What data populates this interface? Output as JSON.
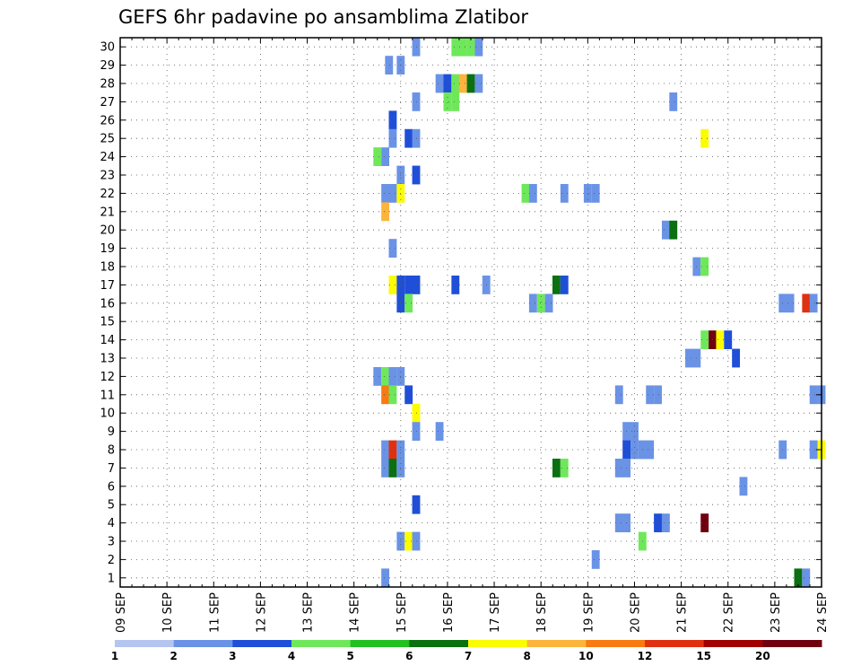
{
  "chart_data": {
    "type": "heatmap",
    "title": "GEFS 6hr padavine po ansamblima Zlatibor",
    "xlabel": "",
    "ylabel": "",
    "x_ticks": [
      "09 SEP",
      "10 SEP",
      "11 SEP",
      "12 SEP",
      "13 SEP",
      "14 SEP",
      "15 SEP",
      "16 SEP",
      "17 SEP",
      "18 SEP",
      "19 SEP",
      "20 SEP",
      "21 SEP",
      "22 SEP",
      "23 SEP",
      "24 SEP"
    ],
    "y_ticks": [
      "1",
      "2",
      "3",
      "4",
      "5",
      "6",
      "7",
      "8",
      "9",
      "10",
      "11",
      "12",
      "13",
      "14",
      "15",
      "16",
      "17",
      "18",
      "19",
      "20",
      "21",
      "22",
      "23",
      "24",
      "25",
      "26",
      "27",
      "28",
      "29",
      "30"
    ],
    "xlim": [
      "09 SEP 00",
      "24 SEP 00"
    ],
    "ylim": [
      0,
      30
    ],
    "grid": true,
    "legend": {
      "placement": "bottom",
      "labels": [
        "1",
        "2",
        "3",
        "4",
        "5",
        "6",
        "7",
        "8",
        "10",
        "12",
        "15",
        "20"
      ],
      "colors": [
        "#b4c6f0",
        "#6a93e6",
        "#1f4fd8",
        "#6ee85a",
        "#22c022",
        "#0a7010",
        "#fcfc00",
        "#fcb43c",
        "#f87a10",
        "#e03010",
        "#a00000",
        "#700010"
      ]
    },
    "cells": [
      [
        15.33,
        30,
        1
      ],
      [
        16.17,
        30,
        3
      ],
      [
        16.33,
        30,
        3
      ],
      [
        16.5,
        30,
        3
      ],
      [
        16.67,
        30,
        1
      ],
      [
        14.75,
        29,
        1
      ],
      [
        15,
        29,
        1
      ],
      [
        15.83,
        28,
        1
      ],
      [
        16,
        28,
        2
      ],
      [
        16.17,
        28,
        3
      ],
      [
        16.33,
        28,
        7
      ],
      [
        16.5,
        28,
        5
      ],
      [
        16.67,
        28,
        1
      ],
      [
        15.33,
        27,
        1
      ],
      [
        16,
        27,
        3
      ],
      [
        16.17,
        27,
        3
      ],
      [
        20.83,
        27,
        1
      ],
      [
        14.83,
        26,
        2
      ],
      [
        14.83,
        25,
        1
      ],
      [
        15.17,
        25,
        2
      ],
      [
        15.33,
        25,
        1
      ],
      [
        21.5,
        25,
        6
      ],
      [
        14.5,
        24,
        3
      ],
      [
        14.67,
        24,
        1
      ],
      [
        15,
        23,
        1
      ],
      [
        15.33,
        23,
        2
      ],
      [
        14.67,
        22,
        1
      ],
      [
        14.83,
        22,
        1
      ],
      [
        15,
        22,
        6
      ],
      [
        17.67,
        22,
        3
      ],
      [
        17.83,
        22,
        1
      ],
      [
        18.5,
        22,
        1
      ],
      [
        19,
        22,
        1
      ],
      [
        19.17,
        22,
        1
      ],
      [
        14.67,
        21,
        7
      ],
      [
        20.67,
        20,
        1
      ],
      [
        20.83,
        20,
        5
      ],
      [
        14.83,
        19,
        1
      ],
      [
        21.33,
        18,
        1
      ],
      [
        21.5,
        18,
        3
      ],
      [
        14.83,
        17,
        6
      ],
      [
        15,
        17,
        2
      ],
      [
        15.17,
        17,
        2
      ],
      [
        15.33,
        17,
        2
      ],
      [
        16.17,
        17,
        2
      ],
      [
        16.83,
        17,
        1
      ],
      [
        18.33,
        17,
        5
      ],
      [
        18.5,
        17,
        2
      ],
      [
        15,
        16,
        2
      ],
      [
        15.17,
        16,
        3
      ],
      [
        17.83,
        16,
        1
      ],
      [
        18,
        16,
        3
      ],
      [
        18.17,
        16,
        1
      ],
      [
        23.17,
        16,
        1
      ],
      [
        23.33,
        16,
        1
      ],
      [
        23.67,
        16,
        9
      ],
      [
        23.83,
        16,
        1
      ],
      [
        21.5,
        14,
        3
      ],
      [
        21.67,
        14,
        11
      ],
      [
        21.83,
        14,
        6
      ],
      [
        22,
        14,
        2
      ],
      [
        21.17,
        13,
        1
      ],
      [
        21.33,
        13,
        1
      ],
      [
        22.17,
        13,
        2
      ],
      [
        14.5,
        12,
        1
      ],
      [
        14.67,
        12,
        3
      ],
      [
        14.83,
        12,
        1
      ],
      [
        15,
        12,
        1
      ],
      [
        14.67,
        11,
        8
      ],
      [
        14.83,
        11,
        3
      ],
      [
        15.17,
        11,
        2
      ],
      [
        19.67,
        11,
        1
      ],
      [
        20.33,
        11,
        1
      ],
      [
        20.5,
        11,
        1
      ],
      [
        23.83,
        11,
        1
      ],
      [
        24,
        11,
        1
      ],
      [
        15.33,
        10,
        6
      ],
      [
        15.33,
        9,
        1
      ],
      [
        15.83,
        9,
        1
      ],
      [
        19.83,
        9,
        1
      ],
      [
        20,
        9,
        1
      ],
      [
        14.67,
        8,
        1
      ],
      [
        14.83,
        8,
        9
      ],
      [
        15,
        8,
        1
      ],
      [
        19.83,
        8,
        2
      ],
      [
        20,
        8,
        1
      ],
      [
        20.17,
        8,
        1
      ],
      [
        20.33,
        8,
        1
      ],
      [
        23.17,
        8,
        1
      ],
      [
        23.83,
        8,
        1
      ],
      [
        24,
        8,
        6
      ],
      [
        14.67,
        7,
        1
      ],
      [
        14.83,
        7,
        5
      ],
      [
        15,
        7,
        1
      ],
      [
        18.33,
        7,
        5
      ],
      [
        18.5,
        7,
        3
      ],
      [
        19.67,
        7,
        1
      ],
      [
        19.83,
        7,
        1
      ],
      [
        22.33,
        6,
        1
      ],
      [
        15.33,
        5,
        2
      ],
      [
        19.67,
        4,
        1
      ],
      [
        19.83,
        4,
        1
      ],
      [
        20.5,
        4,
        2
      ],
      [
        20.67,
        4,
        1
      ],
      [
        21.5,
        4,
        11
      ],
      [
        15,
        3,
        1
      ],
      [
        15.17,
        3,
        6
      ],
      [
        15.33,
        3,
        1
      ],
      [
        20.17,
        3,
        3
      ],
      [
        19.17,
        2,
        1
      ],
      [
        14.67,
        1,
        1
      ],
      [
        23.5,
        1,
        5
      ],
      [
        23.67,
        1,
        1
      ]
    ]
  }
}
